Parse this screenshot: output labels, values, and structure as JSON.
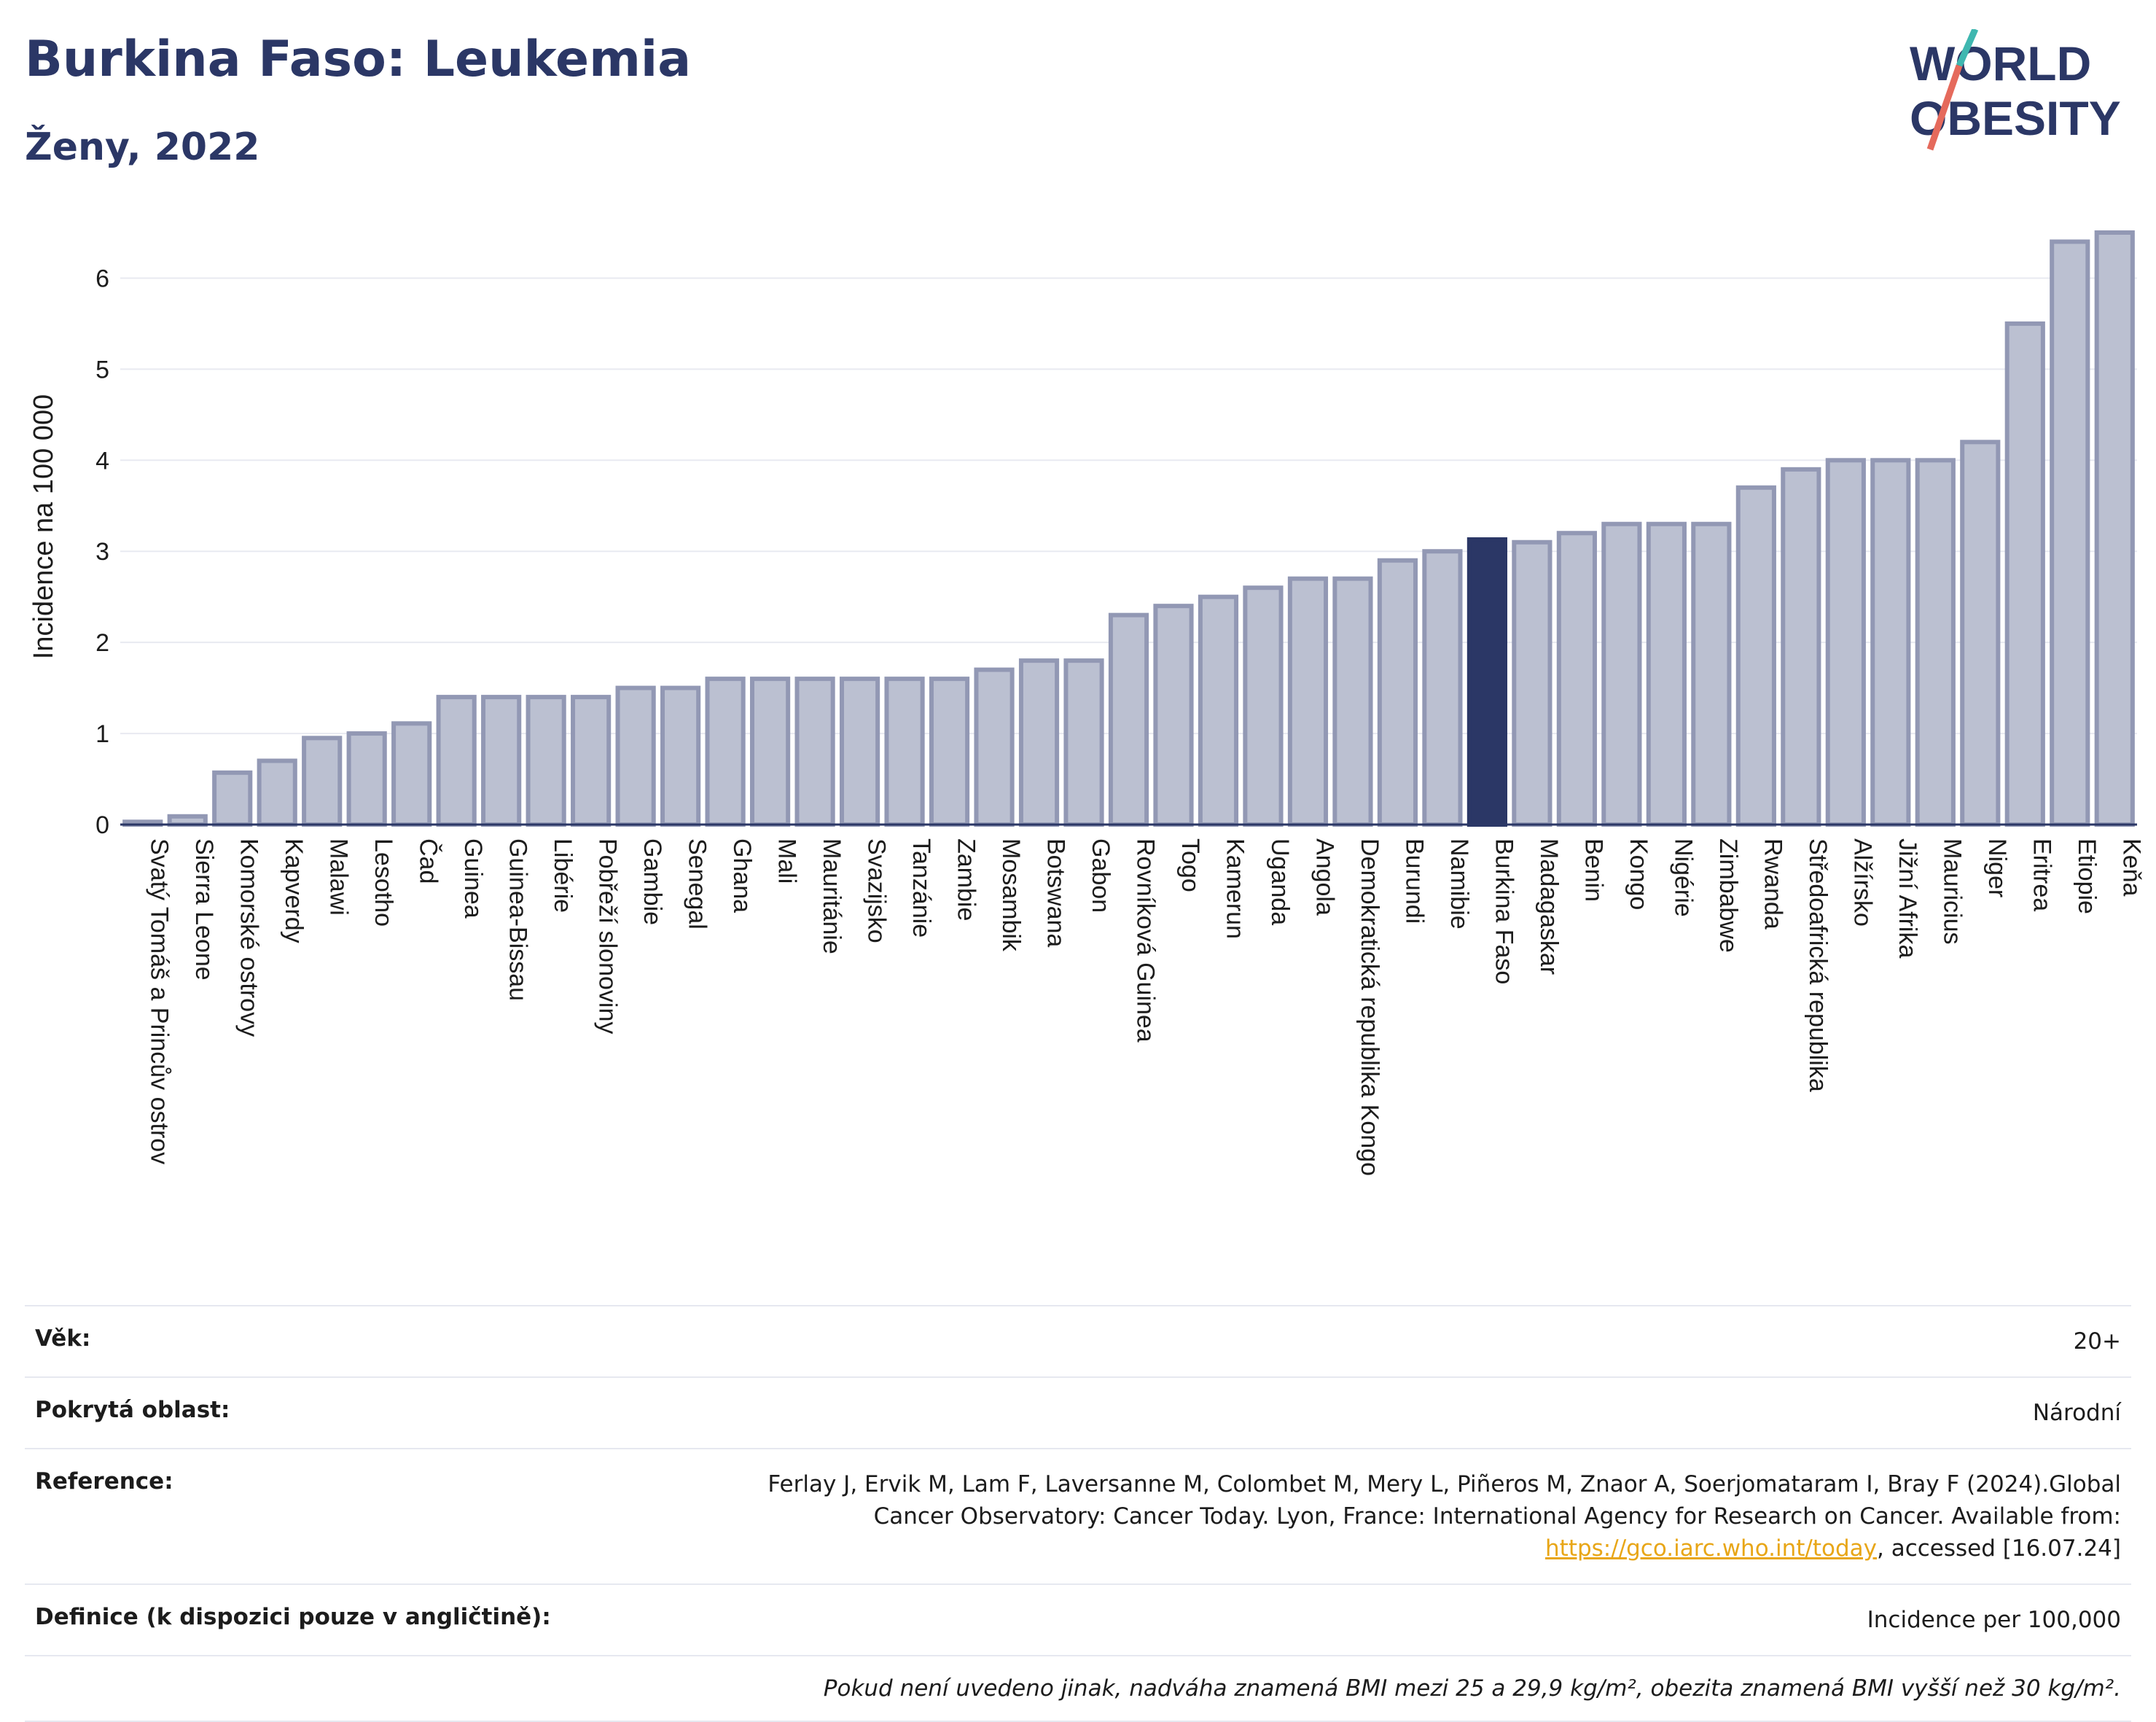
{
  "header": {
    "title": "Burkina Faso: Leukemia",
    "subtitle": "Ženy, 2022"
  },
  "logo": {
    "line1": "WORLD",
    "line2": "OBESITY"
  },
  "colors": {
    "bar": "#bbc0d1",
    "bar_border": "#9298b4",
    "highlight": "#2b3766",
    "title": "#2b3766",
    "link": "#e8a617"
  },
  "chart_data": {
    "type": "bar",
    "ylabel": "Incidence na 100 000",
    "ylim": [
      0,
      6.7
    ],
    "yticks": [
      0,
      1,
      2,
      3,
      4,
      5,
      6
    ],
    "grid": true,
    "highlight": "Burkina Faso",
    "categories": [
      "Svatý Tomáš a Princův ostrov",
      "Sierra Leone",
      "Komorské ostrovy",
      "Kapverdy",
      "Malawi",
      "Lesotho",
      "Čad",
      "Guinea",
      "Guinea-Bissau",
      "Libérie",
      "Pobřeží slonoviny",
      "Gambie",
      "Senegal",
      "Ghana",
      "Mali",
      "Mauritánie",
      "Svazijsko",
      "Tanzánie",
      "Zambie",
      "Mosambik",
      "Botswana",
      "Gabon",
      "Rovníková Guinea",
      "Togo",
      "Kamerun",
      "Uganda",
      "Angola",
      "Demokratická republika Kongo",
      "Burundi",
      "Namibie",
      "Burkina Faso",
      "Madagaskar",
      "Benin",
      "Kongo",
      "Nigérie",
      "Zimbabwe",
      "Rwanda",
      "Středoafrická republika",
      "Alžírsko",
      "Jižní Afrika",
      "Mauricius",
      "Niger",
      "Eritrea",
      "Etiopie",
      "Keňa"
    ],
    "values": [
      0.03,
      0.09,
      0.57,
      0.7,
      0.95,
      1.0,
      1.11,
      1.4,
      1.4,
      1.4,
      1.4,
      1.5,
      1.5,
      1.6,
      1.6,
      1.6,
      1.6,
      1.6,
      1.6,
      1.7,
      1.8,
      1.8,
      2.3,
      2.4,
      2.5,
      2.6,
      2.7,
      2.7,
      2.9,
      3.0,
      3.13,
      3.1,
      3.2,
      3.3,
      3.3,
      3.3,
      3.7,
      3.9,
      4.0,
      4.0,
      4.0,
      4.2,
      5.5,
      6.4,
      6.5
    ]
  },
  "info": {
    "age_label": "Věk:",
    "age_value": "20+",
    "area_label": "Pokrytá oblast:",
    "area_value": "Národní",
    "reference_label": "Reference:",
    "reference_text": "Ferlay J, Ervik M, Lam F, Laversanne M, Colombet M, Mery L, Piñeros M, Znaor A, Soerjomataram I, Bray F (2024).Global Cancer Observatory: Cancer Today. Lyon, France: International Agency for Research on Cancer. Available from:",
    "reference_link": "https://gco.iarc.who.int/today",
    "reference_suffix": ", accessed [16.07.24]",
    "definition_label": "Definice (k dispozici pouze v angličtině):",
    "definition_value": "Incidence per 100,000",
    "note": "Pokud není uvedeno jinak, nadváha znamená BMI mezi 25 a 29,9 kg/m², obezita znamená BMI vyšší než 30 kg/m²."
  }
}
